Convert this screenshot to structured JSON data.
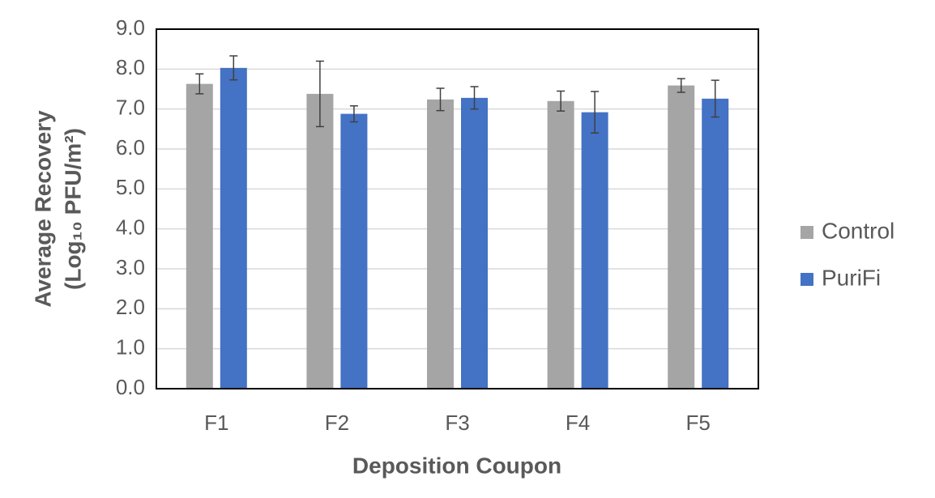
{
  "chart_data": {
    "type": "bar",
    "ylabel": [
      "Average Recovery",
      "(Log₁₀ PFU/m²)"
    ],
    "xlabel": "Deposition Coupon",
    "categories": [
      "F1",
      "F2",
      "F3",
      "F4",
      "F5"
    ],
    "series": [
      {
        "name": "Control",
        "color": "#a5a5a5",
        "values": [
          7.63,
          7.38,
          7.24,
          7.2,
          7.59
        ],
        "errors": [
          0.25,
          0.82,
          0.28,
          0.25,
          0.17
        ]
      },
      {
        "name": "PuriFi",
        "color": "#4472c4",
        "values": [
          8.03,
          6.88,
          7.28,
          6.92,
          7.26
        ],
        "errors": [
          0.3,
          0.2,
          0.28,
          0.52,
          0.46
        ]
      }
    ],
    "ylim": [
      0,
      9
    ],
    "yticks": [
      {
        "value": 0,
        "label": "0.0"
      },
      {
        "value": 1,
        "label": "1.0"
      },
      {
        "value": 2,
        "label": "2.0"
      },
      {
        "value": 3,
        "label": "3.0"
      },
      {
        "value": 4,
        "label": "4.0"
      },
      {
        "value": 5,
        "label": "5.0"
      },
      {
        "value": 6,
        "label": "6.0"
      },
      {
        "value": 7,
        "label": "7.0"
      },
      {
        "value": 8,
        "label": "8.0"
      },
      {
        "value": 9,
        "label": "9.0"
      }
    ],
    "grid": true,
    "legend": "right"
  }
}
